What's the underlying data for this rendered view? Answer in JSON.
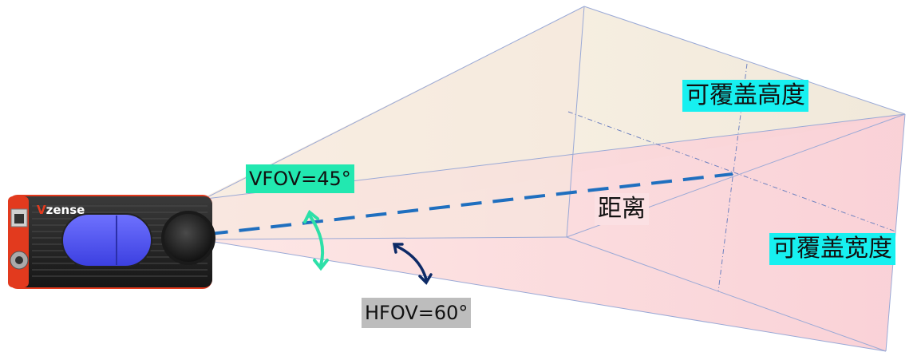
{
  "brand": {
    "logo_text": "Vzense",
    "accent_color": "#e23a1e"
  },
  "labels": {
    "coverage_height": "可覆盖高度",
    "coverage_width": "可覆盖宽度",
    "distance": "距离",
    "vfov": "VFOV=45°",
    "hfov": "HFOV=60°"
  },
  "colors": {
    "height_label_bg": "#17f0f0",
    "width_label_bg": "#17f0f0",
    "vfov_label_bg": "#22e8b0",
    "hfov_label_bg": "#bdbdbd",
    "distance_line": "#1f6fbf",
    "vfov_arrow": "#2de0a8",
    "hfov_arrow": "#0d2a66",
    "frustum_upper": "#f3ead8",
    "frustum_lower": "#f9d3d8"
  },
  "icons": [
    "ethernet-port-icon",
    "m12-connector-icon",
    "lens-icon"
  ]
}
